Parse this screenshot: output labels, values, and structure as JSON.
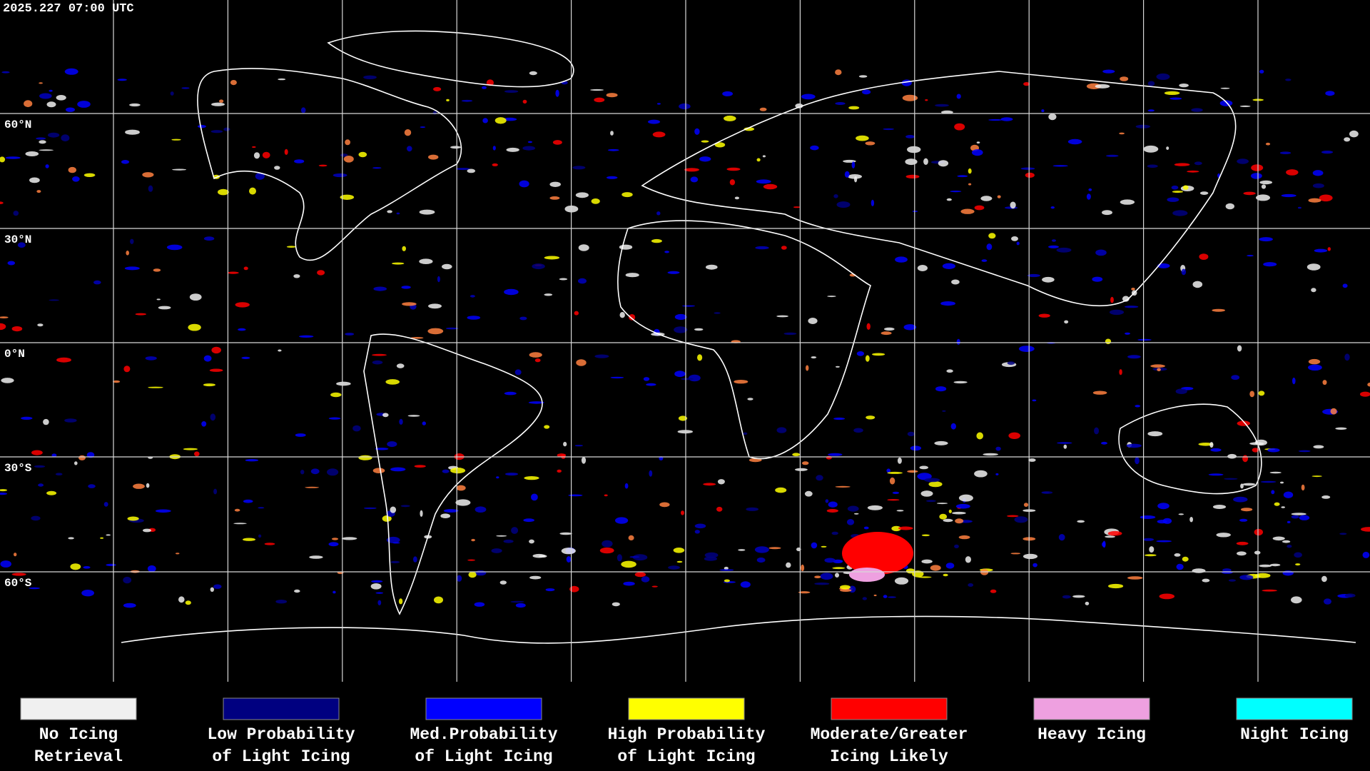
{
  "timestamp": "2025.227 07:00 UTC",
  "latitude_labels": [
    "60°N",
    "30°N",
    "0°N",
    "30°S",
    "60°S"
  ],
  "legend": [
    {
      "color": "#f0f0f0",
      "lines": [
        "No Icing",
        "Retrieval"
      ]
    },
    {
      "color": "#000080",
      "lines": [
        "Low Probability",
        "of Light Icing"
      ]
    },
    {
      "color": "#0000ff",
      "lines": [
        "Med.Probability",
        "of Light Icing"
      ]
    },
    {
      "color": "#ffff00",
      "lines": [
        "High Probability",
        "of Light Icing"
      ]
    },
    {
      "color": "#ff0000",
      "lines": [
        "Moderate/Greater",
        "Icing Likely"
      ]
    },
    {
      "color": "#eea0e0",
      "lines": [
        "Heavy Icing"
      ]
    },
    {
      "color": "#00ffff",
      "lines": [
        "Night Icing"
      ]
    }
  ]
}
